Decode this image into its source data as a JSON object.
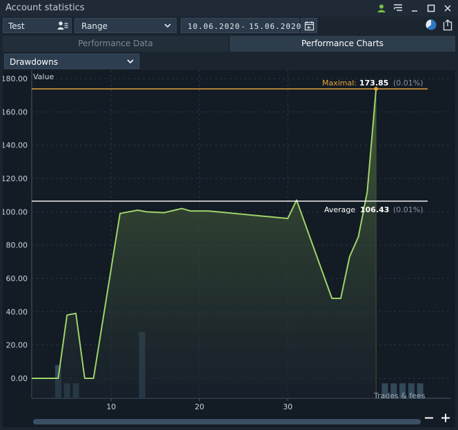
{
  "window": {
    "title": "Account statistics"
  },
  "toolbar": {
    "account": "Test",
    "range": "Range",
    "date_from": "10.06.2020",
    "date_sep": "-",
    "date_to": "15.06.2020"
  },
  "tabs": [
    {
      "label": "Performance Data",
      "active": false
    },
    {
      "label": "Performance Charts",
      "active": true
    }
  ],
  "chart_selector": {
    "value": "Drawdowns"
  },
  "chart_data": {
    "type": "area",
    "ylabel": "Value",
    "ylim": [
      -12,
      185
    ],
    "xlim": [
      1,
      48.5
    ],
    "y_ticks": [
      "180.00",
      "160.00",
      "140.00",
      "120.00",
      "100.00",
      "80.00",
      "60.00",
      "40.00",
      "20.00",
      "0.00"
    ],
    "y_tick_values": [
      180,
      160,
      140,
      120,
      100,
      80,
      60,
      40,
      20,
      0
    ],
    "x_ticks": [
      "10",
      "20",
      "30"
    ],
    "x_tick_values": [
      10,
      20,
      30
    ],
    "series": [
      {
        "x": [
          1,
          4,
          5,
          6,
          7,
          8,
          11,
          13,
          14,
          16,
          18,
          19,
          21,
          30,
          31,
          35,
          36,
          37,
          38,
          39,
          40
        ],
        "y": [
          0,
          0,
          38,
          39,
          0,
          0,
          99,
          101,
          100,
          99.5,
          102,
          100.5,
          100.5,
          96,
          107,
          48,
          48,
          73,
          85,
          112,
          173.85
        ]
      }
    ],
    "trade_bars": [
      {
        "x": 4.0,
        "value": 20
      },
      {
        "x": 5.0,
        "value": 9
      },
      {
        "x": 6.0,
        "value": 9
      },
      {
        "x": 13.5,
        "value": 40
      },
      {
        "x": 41.0,
        "value": 9
      },
      {
        "x": 42.0,
        "value": 9
      },
      {
        "x": 43.0,
        "value": 9
      },
      {
        "x": 44.0,
        "value": 9
      },
      {
        "x": 45.0,
        "value": 9
      }
    ],
    "bars_label": "Trades & fees",
    "maximal": {
      "label": "Maximal:",
      "value": "173.85",
      "pct": "(0.01%)",
      "y": 173.85
    },
    "average": {
      "label": "Average",
      "value": "106.43",
      "pct": "(0.01%)",
      "y": 106.43
    },
    "grid": true,
    "colors": {
      "line": "#9fd46a",
      "max_line": "#e8a53c",
      "avg_line": "#f2f2f2",
      "bars": "#32495a"
    }
  }
}
